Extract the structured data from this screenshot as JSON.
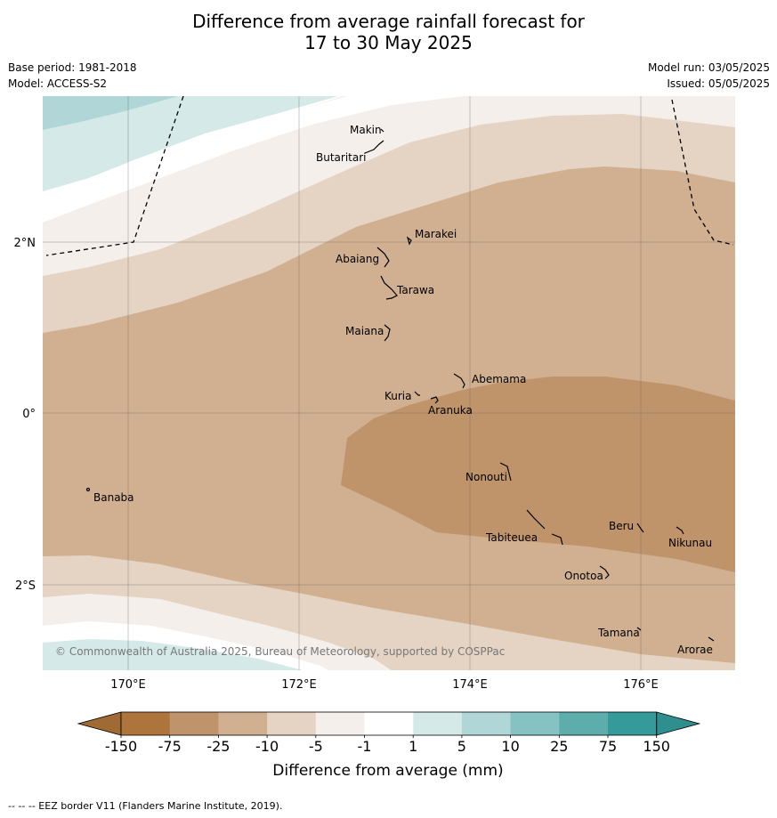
{
  "title": {
    "line1": "Difference from average rainfall forecast for",
    "line2": "17 to 30 May 2025"
  },
  "meta_left": {
    "base_period": "Base period: 1981-2018",
    "model": "Model: ACCESS-S2"
  },
  "meta_right": {
    "model_run": "Model run: 03/05/2025",
    "issued": "Issued: 05/05/2025"
  },
  "axes": {
    "lon_labels": [
      "170°E",
      "172°E",
      "174°E",
      "176°E"
    ],
    "lat_labels": [
      "2°N",
      "0°",
      "2°S"
    ]
  },
  "places": [
    {
      "name": "Makin"
    },
    {
      "name": "Butaritari"
    },
    {
      "name": "Marakei"
    },
    {
      "name": "Abaiang"
    },
    {
      "name": "Tarawa"
    },
    {
      "name": "Maiana"
    },
    {
      "name": "Abemama"
    },
    {
      "name": "Kuria"
    },
    {
      "name": "Aranuka"
    },
    {
      "name": "Banaba"
    },
    {
      "name": "Nonouti"
    },
    {
      "name": "Tabiteuea"
    },
    {
      "name": "Beru"
    },
    {
      "name": "Nikunau"
    },
    {
      "name": "Onotoa"
    },
    {
      "name": "Tamana"
    },
    {
      "name": "Arorae"
    }
  ],
  "copyright": "© Commonwealth of Australia 2025, Bureau of Meteorology, supported by COSPPac",
  "legend": {
    "ticks": [
      "-150",
      "-75",
      "-25",
      "-10",
      "-5",
      "-1",
      "1",
      "5",
      "10",
      "25",
      "75",
      "150"
    ],
    "colors": [
      "#ad743b",
      "#c0946a",
      "#d0b090",
      "#e5d4c4",
      "#f5efec",
      "#ffffff",
      "#d6e9e9",
      "#b0d6d7",
      "#86c2c2",
      "#5eadad",
      "#359a9a"
    ],
    "low_color": "#a06a34",
    "high_color": "#2f8f8f",
    "title": "Difference from average (mm)"
  },
  "footnote": "-- -- -- EEZ border V11 (Flanders Marine Institute, 2019)."
}
